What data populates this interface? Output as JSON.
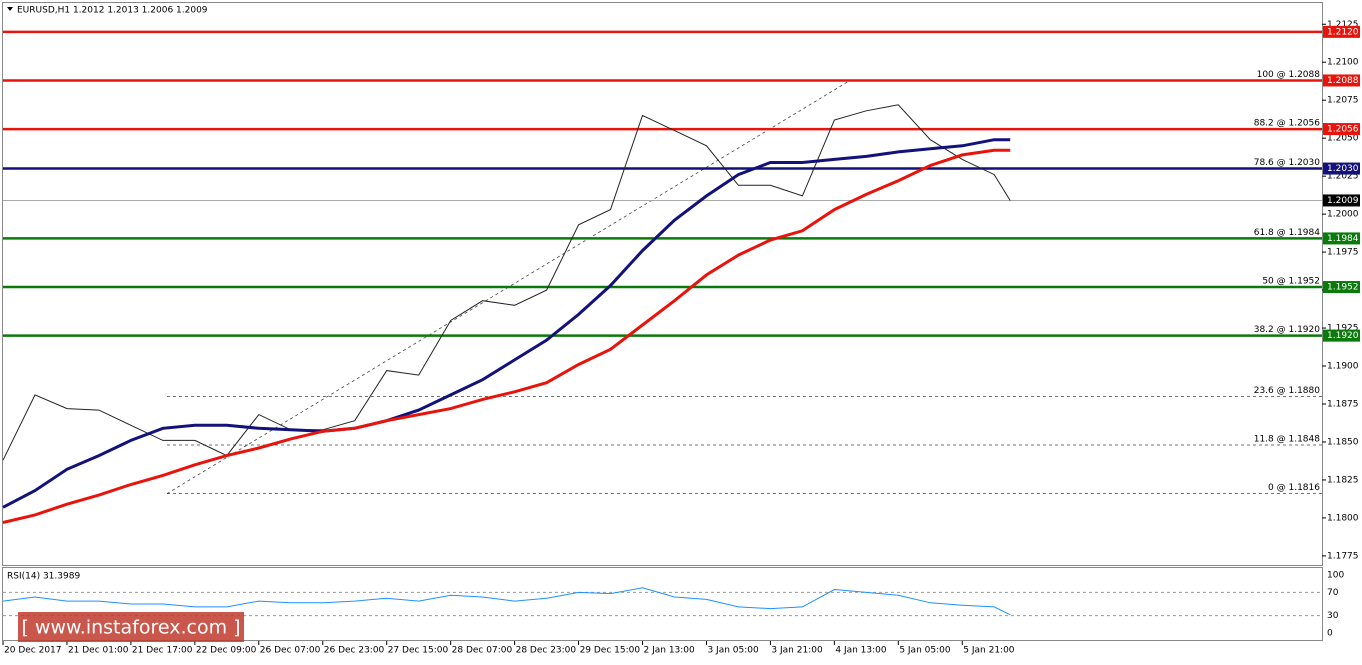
{
  "chart_data": {
    "type": "line",
    "title": "EURUSD,H1  1.2012 1.2013 1.2006 1.2009",
    "x": [
      0,
      8,
      16,
      24,
      32,
      40,
      48,
      56,
      64,
      72,
      80,
      88,
      96,
      104,
      112,
      120,
      128,
      136,
      144,
      152,
      160,
      168,
      176,
      184,
      192,
      200,
      208,
      216,
      224,
      232,
      240,
      248,
      252
    ],
    "xlim": [
      0,
      330
    ],
    "xticks": [
      {
        "value": 0,
        "label": "20 Dec 2017"
      },
      {
        "value": 16,
        "label": "21 Dec 01:00"
      },
      {
        "value": 32,
        "label": "21 Dec 17:00"
      },
      {
        "value": 48,
        "label": "22 Dec 09:00"
      },
      {
        "value": 64,
        "label": "26 Dec 07:00"
      },
      {
        "value": 80,
        "label": "26 Dec 23:00"
      },
      {
        "value": 96,
        "label": "27 Dec 15:00"
      },
      {
        "value": 112,
        "label": "28 Dec 07:00"
      },
      {
        "value": 128,
        "label": "28 Dec 23:00"
      },
      {
        "value": 144,
        "label": "29 Dec 15:00"
      },
      {
        "value": 160,
        "label": "2 Jan 13:00"
      },
      {
        "value": 176,
        "label": "3 Jan 05:00"
      },
      {
        "value": 192,
        "label": "3 Jan 21:00"
      },
      {
        "value": 208,
        "label": "4 Jan 13:00"
      },
      {
        "value": 224,
        "label": "5 Jan 05:00"
      },
      {
        "value": 240,
        "label": "5 Jan 21:00"
      }
    ],
    "ylim": [
      1.1769,
      1.2139
    ],
    "yticks": [
      {
        "value": 1.2125,
        "label": "1.2125"
      },
      {
        "value": 1.21,
        "label": "1.2100"
      },
      {
        "value": 1.2075,
        "label": "1.2075"
      },
      {
        "value": 1.205,
        "label": "1.2050"
      },
      {
        "value": 1.2025,
        "label": "1.2025"
      },
      {
        "value": 1.2,
        "label": "1.2000"
      },
      {
        "value": 1.1975,
        "label": "1.1975"
      },
      {
        "value": 1.195,
        "label": "1.1950"
      },
      {
        "value": 1.1925,
        "label": "1.1925"
      },
      {
        "value": 1.19,
        "label": "1.1900"
      },
      {
        "value": 1.1875,
        "label": "1.1875"
      },
      {
        "value": 1.185,
        "label": "1.1850"
      },
      {
        "value": 1.1825,
        "label": "1.1825"
      },
      {
        "value": 1.18,
        "label": "1.1800"
      },
      {
        "value": 1.1775,
        "label": "1.1775"
      }
    ],
    "series": [
      {
        "color": "#222222",
        "values": [
          1.1838,
          1.1881,
          1.1872,
          1.1871,
          1.1861,
          1.1851,
          1.1851,
          1.1841,
          1.1868,
          1.1858,
          1.1858,
          1.1864,
          1.1897,
          1.1894,
          1.193,
          1.1943,
          1.194,
          1.195,
          1.1993,
          1.2003,
          1.2065,
          1.2055,
          1.2045,
          1.2019,
          1.2019,
          1.2012,
          1.2062,
          1.2068,
          1.2072,
          1.2049,
          1.2036,
          1.2026,
          1.2009
        ]
      },
      {
        "color": "#12127a",
        "values": [
          1.1807,
          1.1818,
          1.1832,
          1.1841,
          1.1851,
          1.1859,
          1.1861,
          1.1861,
          1.1859,
          1.1858,
          1.1857,
          1.1859,
          1.1864,
          1.1871,
          1.1881,
          1.1891,
          1.1904,
          1.1917,
          1.1934,
          1.1953,
          1.1976,
          1.1996,
          1.2012,
          1.2026,
          1.2034,
          1.2034,
          1.2036,
          1.2038,
          1.2041,
          1.2043,
          1.2045,
          1.2049,
          1.2049
        ]
      },
      {
        "color": "#e8140c",
        "values": [
          1.1797,
          1.1802,
          1.1809,
          1.1815,
          1.1822,
          1.1828,
          1.1835,
          1.1841,
          1.1846,
          1.1852,
          1.1857,
          1.1859,
          1.1864,
          1.1868,
          1.1872,
          1.1878,
          1.1883,
          1.1889,
          1.1901,
          1.1911,
          1.1927,
          1.1943,
          1.196,
          1.1973,
          1.1983,
          1.1989,
          1.2003,
          1.2013,
          1.2022,
          1.2032,
          1.2039,
          1.2042,
          1.2042
        ]
      }
    ],
    "levels": [
      {
        "value": 1.212,
        "label": "1.2120",
        "color": "#e8140c"
      },
      {
        "value": 1.2088,
        "label": "1.2088",
        "color": "#e8140c"
      },
      {
        "value": 1.2056,
        "label": "1.2056",
        "color": "#e8140c"
      },
      {
        "value": 1.203,
        "label": "1.2030",
        "color": "#12127a"
      },
      {
        "value": 1.1984,
        "label": "1.1984",
        "color": "#0a7a0a"
      },
      {
        "value": 1.1952,
        "label": "1.1952",
        "color": "#0a7a0a"
      },
      {
        "value": 1.192,
        "label": "1.1920",
        "color": "#0a7a0a"
      }
    ],
    "current": {
      "value": 1.2009,
      "label": "1.2009"
    },
    "fib_levels": [
      {
        "value": 1.2088,
        "label": "100 @ 1.2088"
      },
      {
        "value": 1.2056,
        "label": "88.2 @ 1.2056"
      },
      {
        "value": 1.203,
        "label": "78.6 @ 1.2030"
      },
      {
        "value": 1.1984,
        "label": "61.8 @ 1.1984"
      },
      {
        "value": 1.1952,
        "label": "50 @ 1.1952"
      },
      {
        "value": 1.192,
        "label": "38.2 @ 1.1920"
      },
      {
        "value": 1.188,
        "label": "23.6 @ 1.1880"
      },
      {
        "value": 1.1848,
        "label": "11.8 @ 1.1848"
      },
      {
        "value": 1.1816,
        "label": "0 @ 1.1816"
      }
    ],
    "rsi": {
      "title": "RSI(14) 31.3989",
      "color": "#1e90ff",
      "ylim": [
        0,
        100
      ],
      "yticks": [
        100,
        70,
        30,
        0
      ],
      "values": [
        55,
        62,
        55,
        55,
        50,
        50,
        45,
        45,
        55,
        52,
        52,
        55,
        60,
        55,
        65,
        62,
        55,
        60,
        70,
        68,
        78,
        62,
        58,
        45,
        42,
        45,
        75,
        70,
        65,
        52,
        48,
        45,
        31.4
      ]
    }
  },
  "watermark": "[ www.instaforex.com ]"
}
